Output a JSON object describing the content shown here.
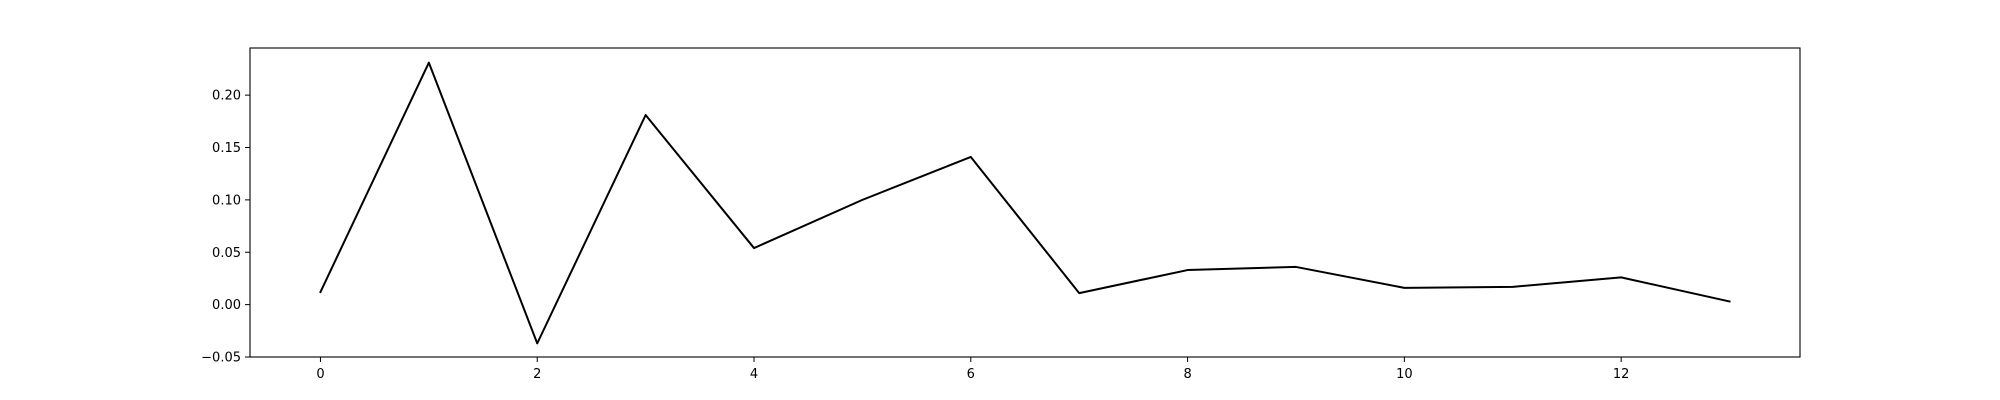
{
  "chart_data": {
    "type": "line",
    "title": "",
    "xlabel": "",
    "ylabel": "",
    "x": [
      0,
      1,
      2,
      3,
      4,
      5,
      6,
      7,
      8,
      9,
      10,
      11,
      12,
      13
    ],
    "series": [
      {
        "values": [
          0.012,
          0.231,
          -0.037,
          0.181,
          0.054,
          0.1,
          0.141,
          0.011,
          0.033,
          0.036,
          0.016,
          0.017,
          0.026,
          0.003
        ],
        "color": "#000000"
      }
    ],
    "xlim": [
      -0.65,
      13.65
    ],
    "ylim": [
      -0.05,
      0.245
    ],
    "xticks": [
      0,
      2,
      4,
      6,
      8,
      10,
      12
    ],
    "xtick_labels": [
      "0",
      "2",
      "4",
      "6",
      "8",
      "10",
      "12"
    ],
    "yticks": [
      -0.05,
      0.0,
      0.05,
      0.1,
      0.15,
      0.2
    ],
    "ytick_labels": [
      "−0.05",
      "0.00",
      "0.05",
      "0.10",
      "0.15",
      "0.20"
    ],
    "grid": false,
    "legend": "none"
  }
}
